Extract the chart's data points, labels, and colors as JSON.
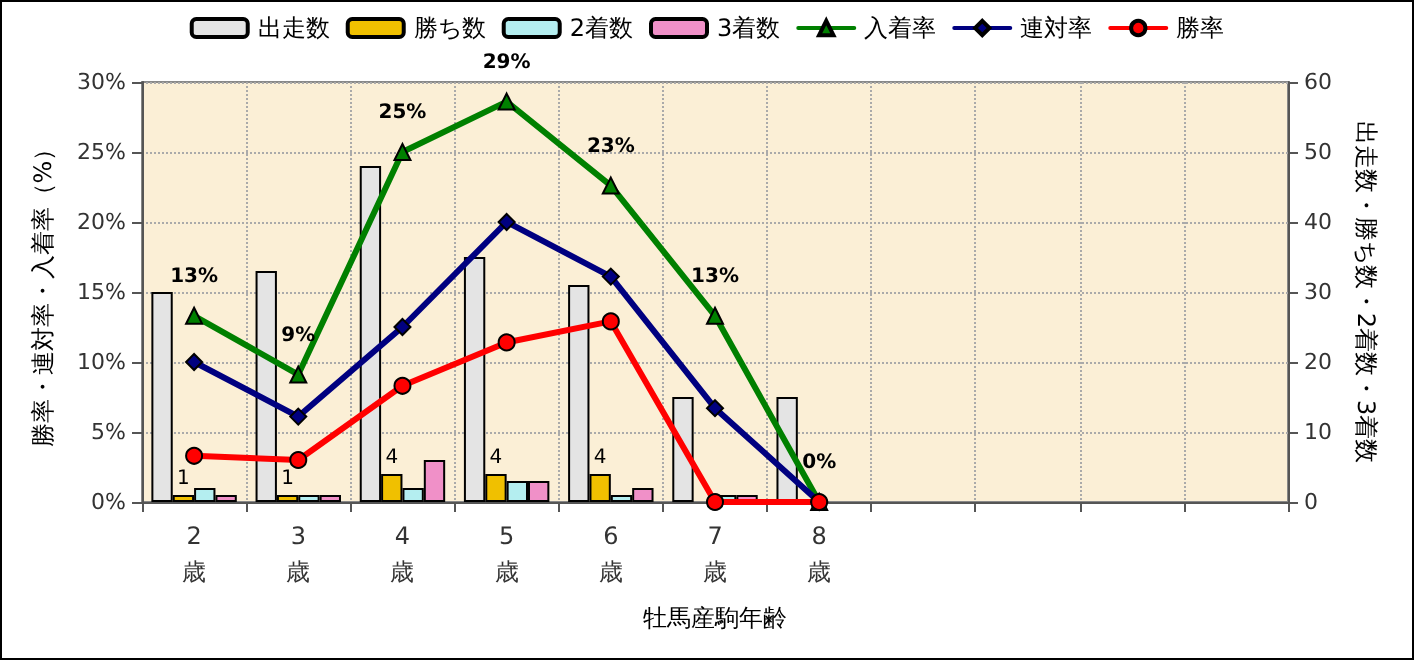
{
  "chart_data": {
    "type": "bar",
    "xlabel": "牡馬産駒年齢",
    "ylabel": "勝率・連対率・入着率（%）",
    "y2label": "出走数・勝ち数・2着数・3着数",
    "categories": [
      "2\n歳",
      "3\n歳",
      "4\n歳",
      "5\n歳",
      "6\n歳",
      "7\n歳",
      "8\n歳",
      null,
      null,
      null,
      null
    ],
    "ylim": [
      0,
      30
    ],
    "yticks": [
      {
        "value": 0,
        "label": "0%"
      },
      {
        "value": 5,
        "label": "5%"
      },
      {
        "value": 10,
        "label": "10%"
      },
      {
        "value": 15,
        "label": "15%"
      },
      {
        "value": 20,
        "label": "20%"
      },
      {
        "value": 25,
        "label": "25%"
      },
      {
        "value": 30,
        "label": "30%"
      }
    ],
    "y2lim": [
      0,
      60
    ],
    "y2ticks": [
      0,
      10,
      20,
      30,
      40,
      50,
      60
    ],
    "grid": true,
    "legend": "top",
    "series": [
      {
        "name": "出走数",
        "axis": "y2",
        "color": "#e4e4e4",
        "values": [
          30,
          33,
          48,
          35,
          31,
          15,
          15,
          null,
          null,
          null,
          null
        ]
      },
      {
        "name": "勝ち数",
        "axis": "y2",
        "color": "#f0c000",
        "values": [
          1,
          1,
          4,
          4,
          4,
          0,
          0,
          null,
          null,
          null,
          null
        ],
        "value_labels": [
          "1",
          "1",
          "4",
          "4",
          "4",
          null,
          null,
          null,
          null,
          null,
          null
        ]
      },
      {
        "name": "2着数",
        "axis": "y2",
        "color": "#b4eef0",
        "values": [
          2,
          1,
          2,
          3,
          1,
          1,
          0,
          null,
          null,
          null,
          null
        ]
      },
      {
        "name": "3着数",
        "axis": "y2",
        "color": "#f090c8",
        "values": [
          1,
          1,
          6,
          3,
          2,
          1,
          0,
          null,
          null,
          null,
          null
        ]
      },
      {
        "name": "入着率",
        "type": "line",
        "axis": "y",
        "color": "#008000",
        "marker": "triangle",
        "values": [
          13.3,
          9.1,
          25,
          28.6,
          22.6,
          13.3,
          0,
          null,
          null,
          null,
          null
        ],
        "value_labels": [
          "13%",
          "9%",
          "25%",
          "29%",
          "23%",
          "13%",
          "0%",
          null,
          null,
          null,
          null
        ]
      },
      {
        "name": "連対率",
        "type": "line",
        "axis": "y",
        "color": "#000080",
        "marker": "diamond",
        "values": [
          10,
          6.1,
          12.5,
          20,
          16.1,
          6.7,
          0,
          null,
          null,
          null,
          null
        ]
      },
      {
        "name": "勝率",
        "type": "line",
        "axis": "y",
        "color": "#ff0000",
        "marker": "circle",
        "values": [
          3.3,
          3,
          8.3,
          11.4,
          12.9,
          0,
          0,
          null,
          null,
          null,
          null
        ]
      }
    ]
  }
}
